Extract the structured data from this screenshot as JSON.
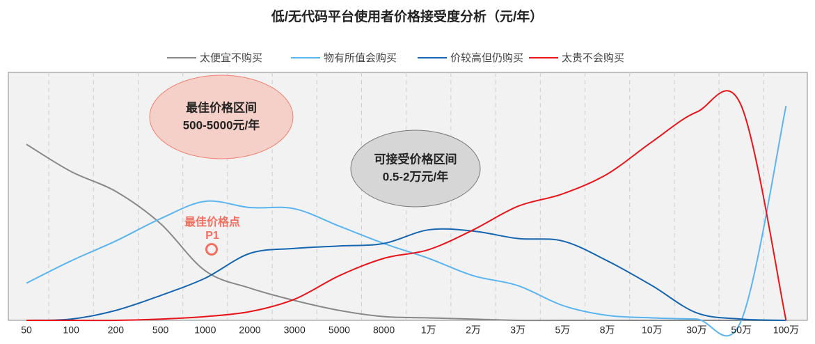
{
  "chart_data": {
    "type": "line",
    "title": "低/无代码平台使用者价格接受度分析（元/年）",
    "categories": [
      "50",
      "100",
      "200",
      "500",
      "1000",
      "2000",
      "3000",
      "5000",
      "8000",
      "1万",
      "2万",
      "3万",
      "5万",
      "8万",
      "10万",
      "30万",
      "50万",
      "100万"
    ],
    "series": [
      {
        "name": "太便宜不购买",
        "color": "#888888",
        "values": [
          71,
          60,
          52,
          39,
          20,
          13,
          8,
          4,
          1.5,
          1,
          0.5,
          0,
          0,
          0,
          0,
          0,
          0,
          0
        ]
      },
      {
        "name": "物有所值会购买",
        "color": "#5ab4f0",
        "values": [
          15,
          24,
          32,
          41,
          48,
          45.5,
          45,
          38,
          31,
          25,
          18,
          14,
          6,
          2,
          1,
          0.5,
          0,
          86.5
        ]
      },
      {
        "name": "价较高但仍购买",
        "color": "#1565b0",
        "values": [
          0,
          0.5,
          4,
          10,
          17,
          27,
          29,
          30,
          31,
          36.5,
          36,
          33,
          32,
          24,
          14,
          3,
          0.5,
          0
        ]
      },
      {
        "name": "太贵不会购买",
        "color": "#e8141a",
        "values": [
          0,
          0,
          0,
          0.5,
          1.5,
          3.5,
          8.5,
          18,
          25,
          28.5,
          36.5,
          46,
          51,
          59,
          72,
          84,
          86.5,
          0
        ]
      }
    ],
    "ylim": [
      0,
      100
    ],
    "grid": true,
    "annotations": {
      "best_range": [
        "最佳价格区间",
        "500-5000元/年"
      ],
      "acceptable_range": [
        "可接受价格区间",
        "0.5-2万元/年"
      ],
      "best_point": [
        "最佳价格点",
        "P1"
      ]
    }
  }
}
